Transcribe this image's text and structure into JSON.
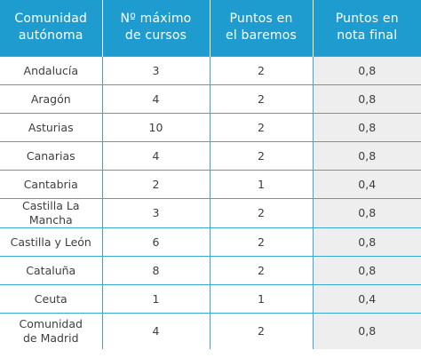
{
  "table": {
    "headers": [
      [
        "Comunidad",
        "autónoma"
      ],
      [
        "Nº máximo",
        "de cursos"
      ],
      [
        "Puntos en",
        "el baremos"
      ],
      [
        "Puntos en",
        "nota final"
      ]
    ],
    "rows": [
      [
        [
          "Andalucía"
        ],
        "3",
        "2",
        "0,8"
      ],
      [
        [
          "Aragón"
        ],
        "4",
        "2",
        "0,8"
      ],
      [
        [
          "Asturias"
        ],
        "10",
        "2",
        "0,8"
      ],
      [
        [
          "Canarias"
        ],
        "4",
        "2",
        "0,8"
      ],
      [
        [
          "Cantabria"
        ],
        "2",
        "1",
        "0,4"
      ],
      [
        [
          "Castilla La Mancha"
        ],
        "3",
        "2",
        "0,8"
      ],
      [
        [
          "Castilla y León"
        ],
        "6",
        "2",
        "0,8"
      ],
      [
        [
          "Cataluña"
        ],
        "8",
        "2",
        "0,8"
      ],
      [
        [
          "Ceuta"
        ],
        "1",
        "1",
        "0,4"
      ],
      [
        [
          "Comunidad",
          "de Madrid"
        ],
        "4",
        "2",
        "0,8"
      ]
    ]
  }
}
